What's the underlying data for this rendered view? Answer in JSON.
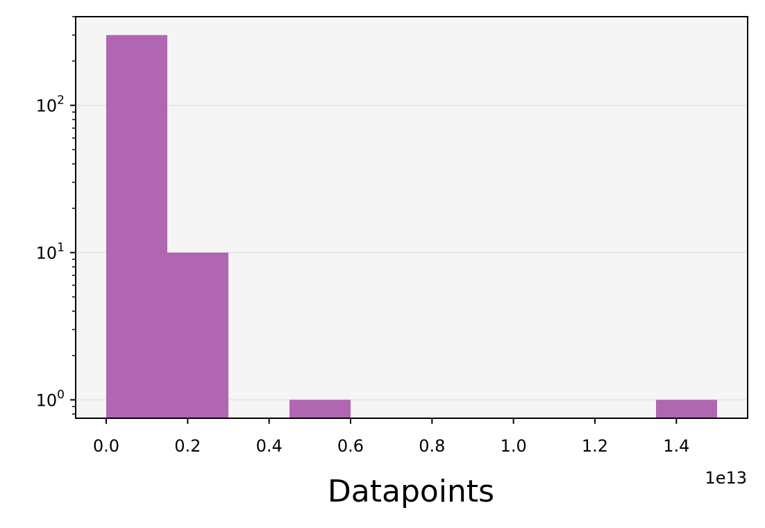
{
  "chart_data": {
    "type": "bar",
    "title": "",
    "xlabel": "Datapoints",
    "ylabel": "",
    "x_offset_label": "1e13",
    "x_scale_note": "x values in units of 1e13",
    "yscale": "log",
    "xlim": [
      -0.075,
      1.575
    ],
    "ylim": [
      0.75,
      400
    ],
    "grid": "y-major",
    "bar_color": "#b066b0",
    "plot_background": "#f5f5f5",
    "x_ticks": [
      "0.0",
      "0.2",
      "0.4",
      "0.6",
      "0.8",
      "1.0",
      "1.2",
      "1.4"
    ],
    "x_tick_values": [
      0.0,
      0.2,
      0.4,
      0.6,
      0.8,
      1.0,
      1.2,
      1.4
    ],
    "y_ticks": [
      {
        "value": 1,
        "base": "10",
        "exp": "0"
      },
      {
        "value": 10,
        "base": "10",
        "exp": "1"
      },
      {
        "value": 100,
        "base": "10",
        "exp": "2"
      }
    ],
    "bins": [
      {
        "start": 0.0,
        "end": 0.15,
        "count": 300
      },
      {
        "start": 0.15,
        "end": 0.3,
        "count": 10
      },
      {
        "start": 0.3,
        "end": 0.45,
        "count": 0
      },
      {
        "start": 0.45,
        "end": 0.6,
        "count": 1
      },
      {
        "start": 0.6,
        "end": 0.75,
        "count": 0
      },
      {
        "start": 0.75,
        "end": 0.9,
        "count": 0
      },
      {
        "start": 0.9,
        "end": 1.05,
        "count": 0
      },
      {
        "start": 1.05,
        "end": 1.2,
        "count": 0
      },
      {
        "start": 1.2,
        "end": 1.35,
        "count": 0
      },
      {
        "start": 1.35,
        "end": 1.5,
        "count": 1
      }
    ]
  }
}
